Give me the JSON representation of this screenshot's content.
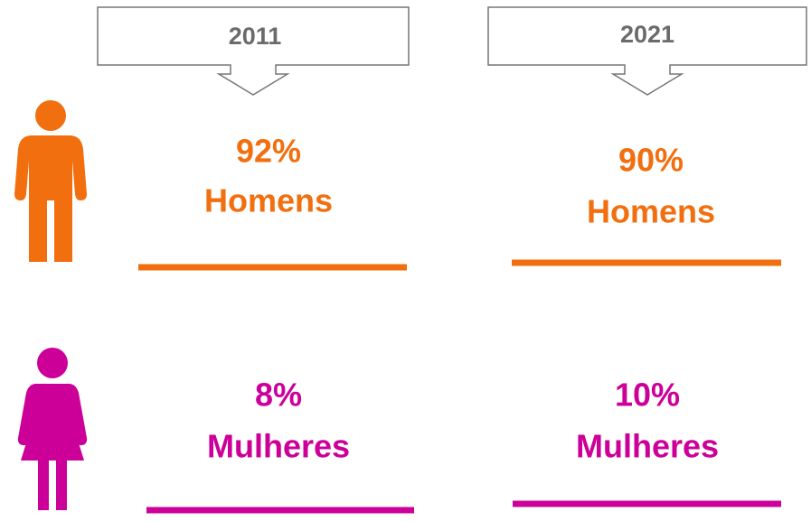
{
  "columns": [
    "2011",
    "2021"
  ],
  "rows": [
    {
      "label": "Homens",
      "values": [
        "92%",
        "90%"
      ],
      "color": "#f26f0f"
    },
    {
      "label": "Mulheres",
      "values": [
        "8%",
        "10%"
      ],
      "color": "#cc0099"
    }
  ]
}
